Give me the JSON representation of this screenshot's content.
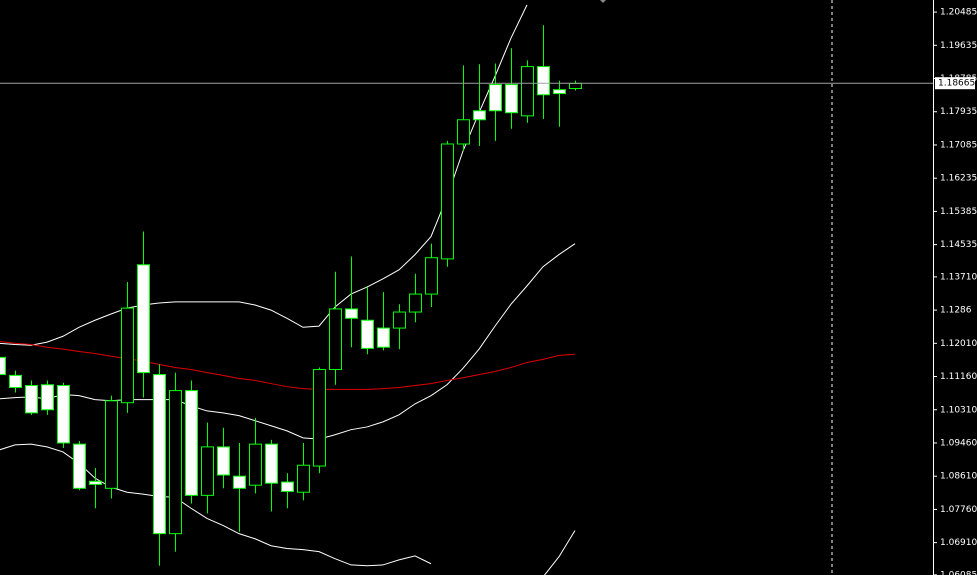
{
  "chart_data": {
    "type": "candlestick",
    "open": [
      1.1165,
      1.1119,
      1.1093,
      1.1095,
      1.1093,
      1.0943,
      1.0848,
      1.083,
      1.1049,
      1.1402,
      1.1121,
      1.0714,
      1.108,
      1.0812,
      1.0936,
      1.0861,
      1.0838,
      1.0943,
      1.0846,
      1.082,
      1.0887,
      1.1134,
      1.1289,
      1.126,
      1.124,
      1.124,
      1.1281,
      1.1327,
      1.1417,
      1.1711,
      1.1796,
      1.1863,
      1.1863,
      1.1783,
      1.1909,
      1.185,
      1.1853
    ],
    "high": [
      1.1191,
      1.1131,
      1.1106,
      1.1106,
      1.11,
      1.0951,
      1.0882,
      1.1067,
      1.1358,
      1.1487,
      1.1147,
      1.1126,
      1.1106,
      1.0998,
      1.0985,
      1.0946,
      1.101,
      1.0954,
      1.0869,
      1.0946,
      1.1139,
      1.1384,
      1.1423,
      1.1345,
      1.1332,
      1.1301,
      1.1379,
      1.1456,
      1.1719,
      1.1912,
      1.1915,
      1.1917,
      1.1956,
      1.1925,
      1.2015,
      1.1873,
      1.1873
    ],
    "low": [
      1.11,
      1.1075,
      1.1018,
      1.1018,
      1.0933,
      1.0825,
      1.0779,
      1.0804,
      1.1023,
      1.1062,
      1.0632,
      1.0668,
      1.0791,
      1.0766,
      1.083,
      1.0719,
      1.0817,
      1.0771,
      1.0779,
      1.0799,
      1.0869,
      1.1095,
      1.1191,
      1.1173,
      1.1183,
      1.1186,
      1.1255,
      1.1294,
      1.1397,
      1.1693,
      1.1706,
      1.1719,
      1.175,
      1.1765,
      1.1775,
      1.1755,
      1.1848
    ],
    "close": [
      1.1121,
      1.1088,
      1.1023,
      1.1031,
      1.0946,
      1.083,
      1.084,
      1.1054,
      1.1291,
      1.1126,
      1.0714,
      1.108,
      1.0812,
      1.0936,
      1.0864,
      1.083,
      1.0943,
      1.0843,
      1.0822,
      1.0889,
      1.1134,
      1.1289,
      1.1265,
      1.1188,
      1.1191,
      1.1281,
      1.1327,
      1.142,
      1.1711,
      1.1773,
      1.1773,
      1.1796,
      1.1791,
      1.1909,
      1.1837,
      1.184,
      1.1866
    ],
    "up_color": "#000000",
    "down_color": "#ffffff",
    "edge_color": "#00ff00",
    "lines": [
      {
        "color": "#ffffff",
        "values": [
          1.1201,
          1.1198,
          1.1196,
          1.1204,
          1.1219,
          1.1242,
          1.126,
          1.1276,
          1.1291,
          1.1299,
          1.1304,
          1.1307,
          1.1307,
          1.1307,
          1.1307,
          1.1307,
          1.1299,
          1.1286,
          1.1265,
          1.1242,
          1.1245,
          1.1294,
          1.1327,
          1.1345,
          1.1366,
          1.1389,
          1.1428,
          1.1474,
          1.1575,
          1.1693,
          1.1791,
          1.1884,
          1.1982,
          1.2067,
          null,
          null,
          null
        ]
      },
      {
        "color": "#ffffff",
        "values": [
          1.1059,
          1.1062,
          1.1064,
          1.1059,
          1.107,
          1.1067,
          1.1057,
          1.1054,
          1.1057,
          1.1057,
          1.1057,
          1.1057,
          1.1041,
          1.1028,
          1.1023,
          1.1016,
          1.1003,
          1.099,
          1.0977,
          1.0959,
          1.0956,
          1.0967,
          1.098,
          1.0987,
          1.1,
          1.1018,
          1.1046,
          1.1067,
          1.1095,
          1.1137,
          1.1186,
          1.1245,
          1.1301,
          1.1348,
          1.1397,
          1.1428,
          1.1456
        ]
      },
      {
        "color": "#ffffff",
        "values": [
          1.0928,
          1.0941,
          1.0943,
          1.0936,
          1.0923,
          1.0894,
          1.0856,
          1.0833,
          1.082,
          1.0815,
          1.0809,
          1.0807,
          1.0779,
          1.0753,
          1.0735,
          1.0714,
          1.0701,
          1.0683,
          1.0676,
          1.0673,
          1.0668,
          1.065,
          1.0634,
          1.0632,
          1.0634,
          1.0647,
          1.0657,
          1.0637,
          null,
          null,
          null,
          null,
          null,
          null,
          1.0603,
          1.0655,
          1.0722
        ]
      },
      {
        "color": "#e00000",
        "values": [
          1.1206,
          1.1201,
          1.1198,
          1.1191,
          1.1186,
          1.118,
          1.1175,
          1.1168,
          1.1162,
          1.1155,
          1.1147,
          1.1139,
          1.1134,
          1.1126,
          1.1119,
          1.1111,
          1.1106,
          1.1098,
          1.109,
          1.1085,
          1.1083,
          1.1083,
          1.1083,
          1.1083,
          1.1085,
          1.1088,
          1.1093,
          1.1098,
          1.1106,
          1.1113,
          1.1121,
          1.1129,
          1.1139,
          1.1152,
          1.116,
          1.117,
          1.1173
        ]
      }
    ],
    "ylim": [
      1.06082,
      1.20794
    ],
    "yticks": [
      1.20485,
      1.19635,
      1.18785,
      1.17935,
      1.17085,
      1.16235,
      1.15385,
      1.14535,
      {
        "value": 1.1371,
        "label": "1.13710"
      },
      1.1286,
      {
        "value": 1.1201,
        "label": "1.12010"
      },
      {
        "value": 1.1116,
        "label": "1.11160"
      },
      {
        "value": 1.1031,
        "label": "1.10310"
      },
      {
        "value": 1.0946,
        "label": "1.09460"
      },
      {
        "value": 1.0861,
        "label": "1.08610"
      },
      {
        "value": 1.0776,
        "label": "1.07760"
      },
      {
        "value": 1.0691,
        "label": "1.06910"
      },
      1.06085
    ],
    "current_price": 1.18665
  }
}
